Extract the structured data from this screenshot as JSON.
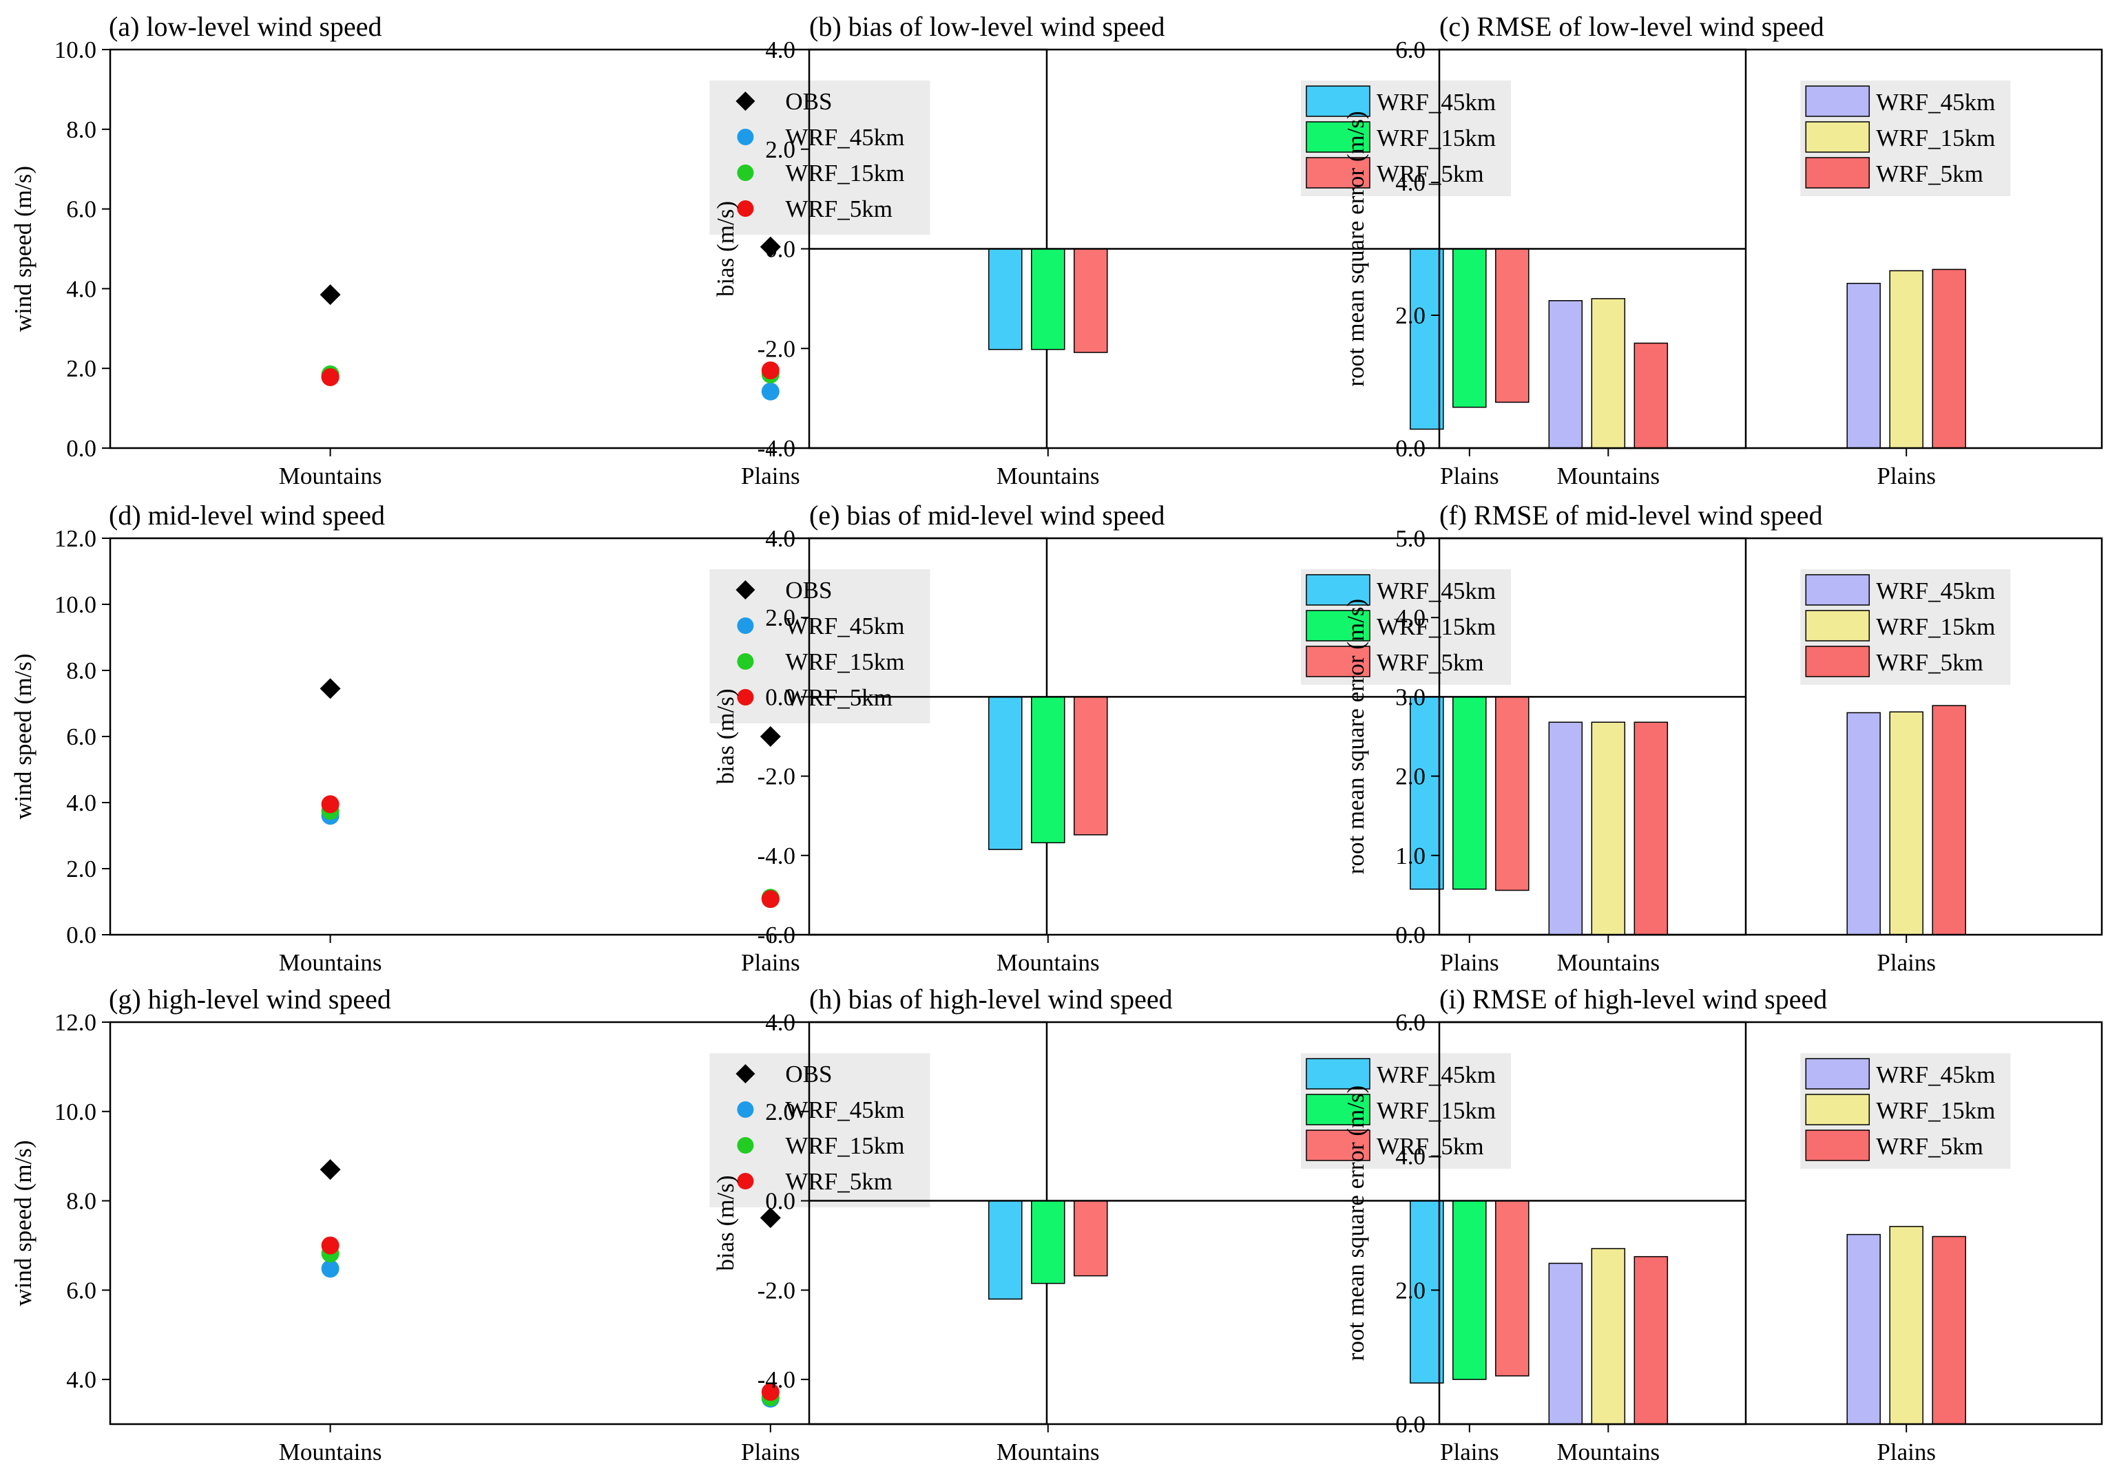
{
  "figure": {
    "categories": [
      "Mountains",
      "Plains"
    ],
    "colors": {
      "OBS": "#000000",
      "WRF_45km_point": "#1e9be8",
      "WRF_15km_point": "#22cc22",
      "WRF_5km_point": "#ee1111",
      "bias_45km": "#45cdfa",
      "bias_15km": "#12f66c",
      "bias_5km": "#fa7474",
      "rmse_45km": "#b6b8f7",
      "rmse_15km": "#f1eb96",
      "rmse_5km": "#f86d6d",
      "legend_bg": "#ebebeb"
    }
  },
  "chart_data": [
    {
      "id": "a",
      "type": "scatter",
      "title": "(a) low-level wind speed",
      "ylabel": "wind speed (m/s)",
      "xlabel": "",
      "ylim": [
        0,
        10
      ],
      "yticks": [
        0,
        2,
        4,
        6,
        8,
        10
      ],
      "tick_labels": [
        "0.0",
        "2.0",
        "4.0",
        "6.0",
        "8.0",
        "10.0"
      ],
      "categories": [
        "Mountains",
        "Plains"
      ],
      "series": [
        {
          "name": "OBS",
          "marker": "diamond",
          "values": [
            3.85,
            5.05
          ]
        },
        {
          "name": "WRF_45km",
          "marker": "circle",
          "values": [
            1.8,
            1.42
          ]
        },
        {
          "name": "WRF_15km",
          "marker": "circle",
          "values": [
            1.85,
            1.85
          ]
        },
        {
          "name": "WRF_5km",
          "marker": "circle",
          "values": [
            1.78,
            1.95
          ]
        }
      ]
    },
    {
      "id": "b",
      "type": "bar",
      "title": "(b) bias of low-level wind speed",
      "ylabel": "bias (m/s)",
      "xlabel": "",
      "ylim": [
        -4,
        4
      ],
      "yticks": [
        -4,
        -2,
        0,
        2,
        4
      ],
      "tick_labels": [
        "-4.0",
        "-2.0",
        "0.0",
        "2.0",
        "4.0"
      ],
      "categories": [
        "Mountains",
        "Plains"
      ],
      "series": [
        {
          "name": "WRF_45km",
          "values": [
            -2.02,
            -3.62
          ]
        },
        {
          "name": "WRF_15km",
          "values": [
            -2.02,
            -3.18
          ]
        },
        {
          "name": "WRF_5km",
          "values": [
            -2.08,
            -3.08
          ]
        }
      ]
    },
    {
      "id": "c",
      "type": "bar",
      "title": "(c) RMSE of low-level wind speed",
      "ylabel": "root mean square error (m/s)",
      "xlabel": "",
      "ylim": [
        0,
        6
      ],
      "yticks": [
        0,
        2,
        4,
        6
      ],
      "tick_labels": [
        "0.0",
        "2.0",
        "4.0",
        "6.0"
      ],
      "categories": [
        "Mountains",
        "Plains"
      ],
      "series": [
        {
          "name": "WRF_45km",
          "values": [
            2.22,
            2.48
          ]
        },
        {
          "name": "WRF_15km",
          "values": [
            2.25,
            2.67
          ]
        },
        {
          "name": "WRF_5km",
          "values": [
            1.58,
            2.69
          ]
        }
      ]
    },
    {
      "id": "d",
      "type": "scatter",
      "title": "(d) mid-level wind speed",
      "ylabel": "wind speed (m/s)",
      "xlabel": "",
      "ylim": [
        0,
        12
      ],
      "yticks": [
        0,
        2,
        4,
        6,
        8,
        10,
        12
      ],
      "tick_labels": [
        "0.0",
        "2.0",
        "4.0",
        "6.0",
        "8.0",
        "10.0",
        "12.0"
      ],
      "categories": [
        "Mountains",
        "Plains"
      ],
      "series": [
        {
          "name": "OBS",
          "marker": "diamond",
          "values": [
            7.45,
            6.0
          ]
        },
        {
          "name": "WRF_45km",
          "marker": "circle",
          "values": [
            3.6,
            1.08
          ]
        },
        {
          "name": "WRF_15km",
          "marker": "circle",
          "values": [
            3.75,
            1.12
          ]
        },
        {
          "name": "WRF_5km",
          "marker": "circle",
          "values": [
            3.95,
            1.08
          ]
        }
      ]
    },
    {
      "id": "e",
      "type": "bar",
      "title": "(e) bias of mid-level wind speed",
      "ylabel": "bias (m/s)",
      "xlabel": "",
      "ylim": [
        -6,
        4
      ],
      "yticks": [
        -6,
        -4,
        -2,
        0,
        2,
        4
      ],
      "tick_labels": [
        "-6.0",
        "-4.0",
        "-2.0",
        "0.0",
        "2.0",
        "4.0"
      ],
      "categories": [
        "Mountains",
        "Plains"
      ],
      "series": [
        {
          "name": "WRF_45km",
          "values": [
            -3.85,
            -4.85
          ]
        },
        {
          "name": "WRF_15km",
          "values": [
            -3.68,
            -4.85
          ]
        },
        {
          "name": "WRF_5km",
          "values": [
            -3.48,
            -4.88
          ]
        }
      ]
    },
    {
      "id": "f",
      "type": "bar",
      "title": "(f) RMSE of mid-level wind speed",
      "ylabel": "root mean square error (m/s)",
      "xlabel": "",
      "ylim": [
        0,
        5
      ],
      "yticks": [
        0,
        1,
        2,
        3,
        4,
        5
      ],
      "tick_labels": [
        "0.0",
        "1.0",
        "2.0",
        "3.0",
        "4.0",
        "5.0"
      ],
      "categories": [
        "Mountains",
        "Plains"
      ],
      "series": [
        {
          "name": "WRF_45km",
          "values": [
            2.68,
            2.8
          ]
        },
        {
          "name": "WRF_15km",
          "values": [
            2.68,
            2.81
          ]
        },
        {
          "name": "WRF_5km",
          "values": [
            2.68,
            2.89
          ]
        }
      ]
    },
    {
      "id": "g",
      "type": "scatter",
      "title": "(g) high-level wind speed",
      "ylabel": "wind speed (m/s)",
      "xlabel": "",
      "ylim": [
        3,
        12
      ],
      "yticks": [
        4,
        6,
        8,
        10,
        12
      ],
      "tick_labels": [
        "4.0",
        "6.0",
        "8.0",
        "10.0",
        "12.0"
      ],
      "categories": [
        "Mountains",
        "Plains"
      ],
      "series": [
        {
          "name": "OBS",
          "marker": "diamond",
          "values": [
            8.7,
            7.62
          ]
        },
        {
          "name": "WRF_45km",
          "marker": "circle",
          "values": [
            6.48,
            3.57
          ]
        },
        {
          "name": "WRF_15km",
          "marker": "circle",
          "values": [
            6.82,
            3.6
          ]
        },
        {
          "name": "WRF_5km",
          "marker": "circle",
          "values": [
            7.0,
            3.72
          ]
        }
      ]
    },
    {
      "id": "h",
      "type": "bar",
      "title": "(h) bias of high-level wind speed",
      "ylabel": "bias (m/s)",
      "xlabel": "",
      "ylim": [
        -5,
        4
      ],
      "yticks": [
        -4,
        -2,
        0,
        2,
        4
      ],
      "tick_labels": [
        "-4.0",
        "-2.0",
        "0.0",
        "2.0",
        "4.0"
      ],
      "categories": [
        "Mountains",
        "Plains"
      ],
      "series": [
        {
          "name": "WRF_45km",
          "values": [
            -2.2,
            -4.08
          ]
        },
        {
          "name": "WRF_15km",
          "values": [
            -1.85,
            -4.0
          ]
        },
        {
          "name": "WRF_5km",
          "values": [
            -1.68,
            -3.92
          ]
        }
      ]
    },
    {
      "id": "i",
      "type": "bar",
      "title": "(i) RMSE of high-level wind speed",
      "ylabel": "root mean square error (m/s)",
      "xlabel": "",
      "ylim": [
        0,
        6
      ],
      "yticks": [
        0,
        2,
        4,
        6
      ],
      "tick_labels": [
        "0.0",
        "2.0",
        "4.0",
        "6.0"
      ],
      "categories": [
        "Mountains",
        "Plains"
      ],
      "series": [
        {
          "name": "WRF_45km",
          "values": [
            2.4,
            2.83
          ]
        },
        {
          "name": "WRF_15km",
          "values": [
            2.62,
            2.95
          ]
        },
        {
          "name": "WRF_5km",
          "values": [
            2.5,
            2.8
          ]
        }
      ]
    }
  ]
}
